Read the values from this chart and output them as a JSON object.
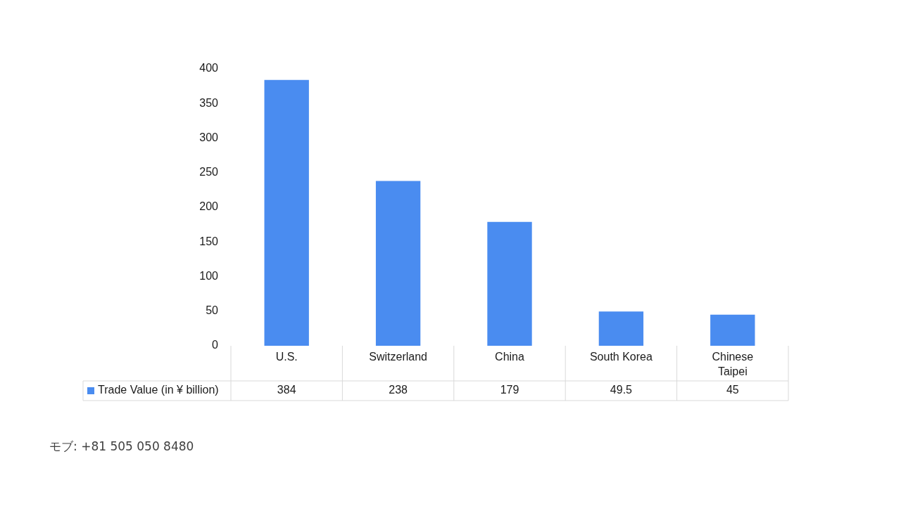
{
  "chart_data": {
    "type": "bar",
    "categories": [
      "U.S.",
      "Switzerland",
      "China",
      "South Korea",
      "Chinese Taipei"
    ],
    "series": [
      {
        "name": "Trade Value (in ¥ billion)",
        "color": "#4a8cf0",
        "values": [
          384,
          238,
          179,
          49.5,
          45
        ]
      }
    ],
    "ylim": [
      0,
      400
    ],
    "yticks": [
      0,
      50,
      100,
      150,
      200,
      250,
      300,
      350,
      400
    ],
    "grid": false,
    "legend": "bottom",
    "data_labels": true,
    "annotations": [
      "モブ: +81 505 050 8480"
    ]
  }
}
